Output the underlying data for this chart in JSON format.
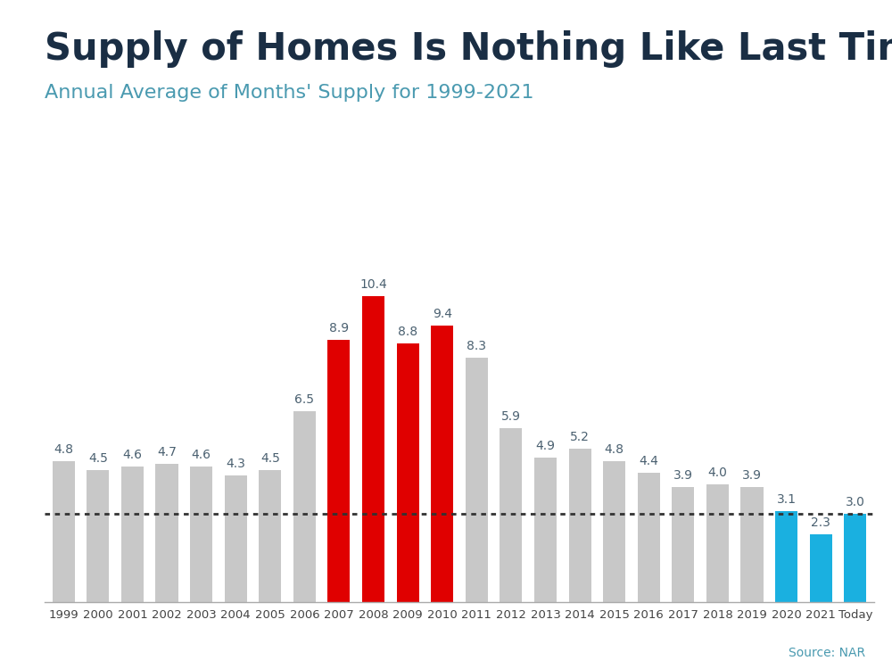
{
  "categories": [
    "1999",
    "2000",
    "2001",
    "2002",
    "2003",
    "2004",
    "2005",
    "2006",
    "2007",
    "2008",
    "2009",
    "2010",
    "2011",
    "2012",
    "2013",
    "2014",
    "2015",
    "2016",
    "2017",
    "2018",
    "2019",
    "2020",
    "2021",
    "Today"
  ],
  "values": [
    4.8,
    4.5,
    4.6,
    4.7,
    4.6,
    4.3,
    4.5,
    6.5,
    8.9,
    10.4,
    8.8,
    9.4,
    8.3,
    5.9,
    4.9,
    5.2,
    4.8,
    4.4,
    3.9,
    4.0,
    3.9,
    3.1,
    2.3,
    3.0
  ],
  "bar_colors": [
    "#c8c8c8",
    "#c8c8c8",
    "#c8c8c8",
    "#c8c8c8",
    "#c8c8c8",
    "#c8c8c8",
    "#c8c8c8",
    "#c8c8c8",
    "#e00000",
    "#e00000",
    "#e00000",
    "#e00000",
    "#c8c8c8",
    "#c8c8c8",
    "#c8c8c8",
    "#c8c8c8",
    "#c8c8c8",
    "#c8c8c8",
    "#c8c8c8",
    "#c8c8c8",
    "#c8c8c8",
    "#1ab0e0",
    "#1ab0e0",
    "#1ab0e0"
  ],
  "title": "Supply of Homes Is Nothing Like Last Time",
  "subtitle": "Annual Average of Months' Supply for 1999-2021",
  "title_color": "#1a2e44",
  "subtitle_color": "#4a9ab0",
  "dotted_line_y": 3.0,
  "source_text": "Source: NAR",
  "top_stripe_color": "#4ab8d8",
  "background_color": "#ffffff",
  "label_color": "#4a6070",
  "label_fontsize": 10,
  "title_fontsize": 30,
  "subtitle_fontsize": 16,
  "source_fontsize": 10
}
